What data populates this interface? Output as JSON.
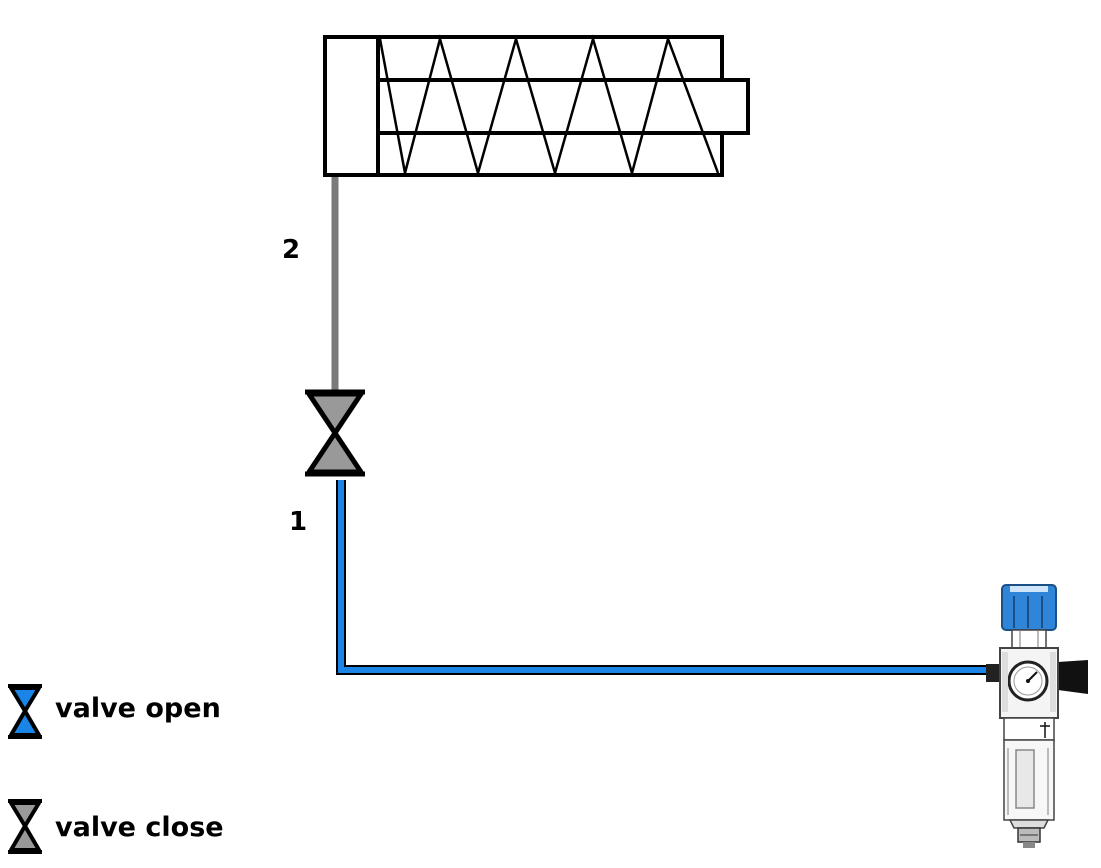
{
  "diagram": {
    "port_upper": "2",
    "port_lower": "1",
    "valve_state": "closed"
  },
  "legend": {
    "open_label": "valve open",
    "close_label": "valve close"
  },
  "colors": {
    "pressurized_line": "#1a85e6",
    "exhausted_line": "#7a7a7a",
    "valve_closed_fill": "#999999",
    "valve_open_fill": "#1a85e6",
    "regulator_knob": "#2f86d8",
    "outline": "#000000"
  },
  "icons": {
    "cylinder": "spring-return-cylinder-icon",
    "valve": "shutoff-valve-icon",
    "source": "filter-regulator-icon"
  }
}
